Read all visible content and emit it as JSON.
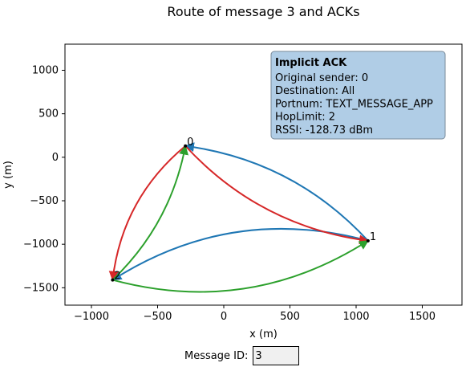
{
  "chart_data": {
    "type": "network-route",
    "title": "Route of message 3 and ACKs",
    "xlabel": "x (m)",
    "ylabel": "y (m)",
    "xlim": [
      -1200,
      1800
    ],
    "ylim": [
      -1700,
      1300
    ],
    "xticks": [
      -1000,
      -500,
      0,
      500,
      1000,
      1500
    ],
    "yticks": [
      1000,
      500,
      0,
      -500,
      -1000,
      -1500
    ],
    "grid": false,
    "nodes": [
      {
        "id": "0",
        "x": -290,
        "y": 130
      },
      {
        "id": "1",
        "x": 1090,
        "y": -960
      },
      {
        "id": "2",
        "x": -840,
        "y": -1410
      }
    ],
    "edges": [
      {
        "from": "1",
        "to": "0",
        "color": "#1f77b4",
        "bend": 0.18
      },
      {
        "from": "1",
        "to": "2",
        "color": "#1f77b4",
        "bend": 0.22
      },
      {
        "from": "0",
        "to": "1",
        "color": "#d62728",
        "bend": 0.18
      },
      {
        "from": "0",
        "to": "2",
        "color": "#d62728",
        "bend": 0.2
      },
      {
        "from": "2",
        "to": "0",
        "color": "#2ca02c",
        "bend": 0.16
      },
      {
        "from": "2",
        "to": "1",
        "color": "#2ca02c",
        "bend": 0.22
      }
    ],
    "info_box": {
      "heading": "Implicit ACK",
      "lines": [
        "Original sender: 0",
        "Destination: All",
        "Portnum: TEXT_MESSAGE_APP",
        "HopLimit: 2",
        "RSSI: -128.73 dBm"
      ],
      "background": "#b0cde6",
      "border": "#7a8a99",
      "position": "top-right"
    }
  },
  "controls": {
    "message_id_label": "Message ID:",
    "message_id_value": "3"
  }
}
